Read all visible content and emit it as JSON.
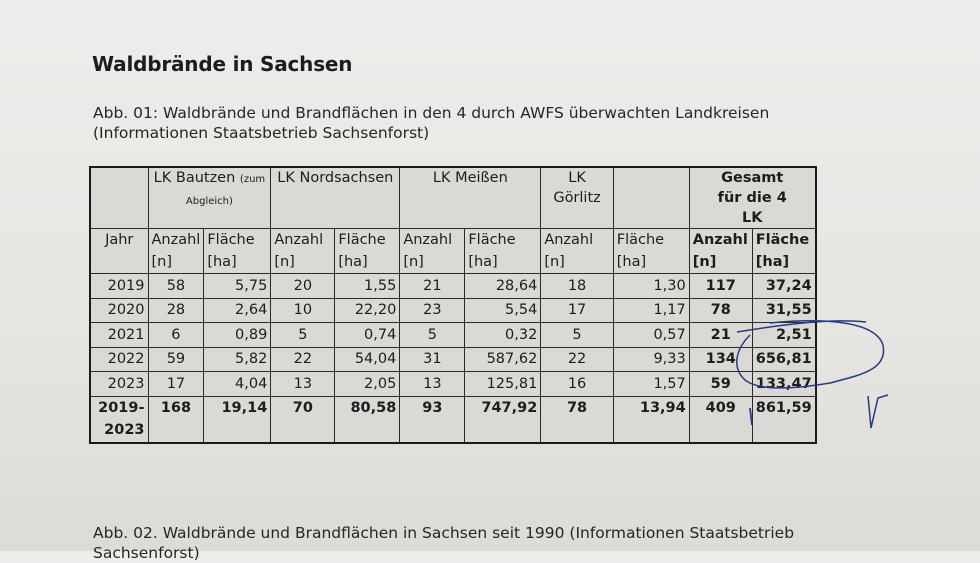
{
  "title": "Waldbrände in Sachsen",
  "caption1": [
    "Abb. 01: Waldbrände und Brandflächen in den 4 durch AWFS überwachten Landkreisen",
    "(Informationen Staatsbetrieb Sachsenforst)"
  ],
  "caption2": [
    "Abb. 02. Waldbrände und Brandflächen in Sachsen seit 1990 (Informationen Staatsbetrieb",
    "Sachsenforst)"
  ],
  "table": {
    "groups": [
      {
        "label": "LK Bautzen",
        "note": "(zum Abgleich)"
      },
      {
        "label": "LK Nordsachsen"
      },
      {
        "label": "LK Meißen"
      },
      {
        "label": "LK Görlitz"
      },
      {
        "label": ""
      },
      {
        "label": "Gesamt für die 4 LK"
      }
    ],
    "year_header": "Jahr",
    "anzahl": [
      "Anzahl",
      "[n]"
    ],
    "flaeche": [
      "Fläche",
      "[ha]"
    ],
    "rows": [
      [
        "2019",
        "58",
        "5,75",
        "20",
        "1,55",
        "21",
        "28,64",
        "18",
        "1,30",
        "117",
        "37,24"
      ],
      [
        "2020",
        "28",
        "2,64",
        "10",
        "22,20",
        "23",
        "5,54",
        "17",
        "1,17",
        "78",
        "31,55"
      ],
      [
        "2021",
        "6",
        "0,89",
        "5",
        "0,74",
        "5",
        "0,32",
        "5",
        "0,57",
        "21",
        "2,51"
      ],
      [
        "2022",
        "59",
        "5,82",
        "22",
        "54,04",
        "31",
        "587,62",
        "22",
        "9,33",
        "134",
        "656,81"
      ],
      [
        "2023",
        "17",
        "4,04",
        "13",
        "2,05",
        "13",
        "125,81",
        "16",
        "1,57",
        "59",
        "133,47"
      ]
    ],
    "total": [
      "2019-2023",
      "168",
      "19,14",
      "70",
      "80,58",
      "93",
      "747,92",
      "78",
      "13,94",
      "409",
      "861,59"
    ]
  },
  "ink_color": "#2a3a7a"
}
